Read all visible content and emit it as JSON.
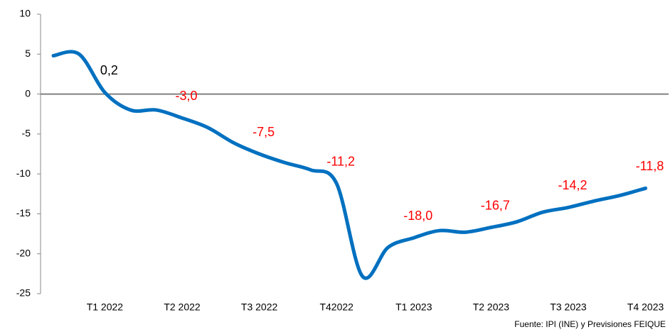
{
  "chart_data": {
    "type": "line",
    "categories": [
      null,
      null,
      "T1 2022",
      null,
      null,
      "T2 2022",
      null,
      null,
      "T3 2022",
      null,
      null,
      "T42022",
      null,
      null,
      "T1 2023",
      null,
      null,
      "T2 2023",
      null,
      null,
      "T3 2023",
      null,
      null,
      "T4 2023"
    ],
    "series": [
      {
        "color": "#0070c0",
        "values": [
          4.8,
          5.0,
          0.2,
          -2.0,
          -2.0,
          -3.0,
          -4.2,
          -6.1,
          -7.5,
          -8.6,
          -9.5,
          -11.2,
          -22.8,
          -19.2,
          -18.0,
          -17.1,
          -17.3,
          -16.7,
          -16.0,
          -14.8,
          -14.2,
          -13.4,
          -12.7,
          -11.8
        ],
        "value_labels": [
          null,
          null,
          "0,2",
          null,
          null,
          "-3,0",
          null,
          null,
          "-7,5",
          null,
          null,
          "-11,2",
          null,
          null,
          "-18,0",
          null,
          null,
          "-16,7",
          null,
          null,
          "-14,2",
          null,
          null,
          "-11,8"
        ],
        "value_label_colors": [
          null,
          null,
          "#000000",
          null,
          null,
          "#ff0000",
          null,
          null,
          "#ff0000",
          null,
          null,
          "#ff0000",
          null,
          null,
          "#ff0000",
          null,
          null,
          "#ff0000",
          null,
          null,
          "#ff0000",
          null,
          null,
          "#ff0000"
        ]
      }
    ],
    "ylim": [
      -25,
      10
    ],
    "yticks": [
      -25,
      -20,
      -15,
      -10,
      -5,
      0,
      5,
      10
    ],
    "zero_line_color": "#808080",
    "source": "Fuente: IPI (INE) y Previsiones FEIQUE"
  }
}
